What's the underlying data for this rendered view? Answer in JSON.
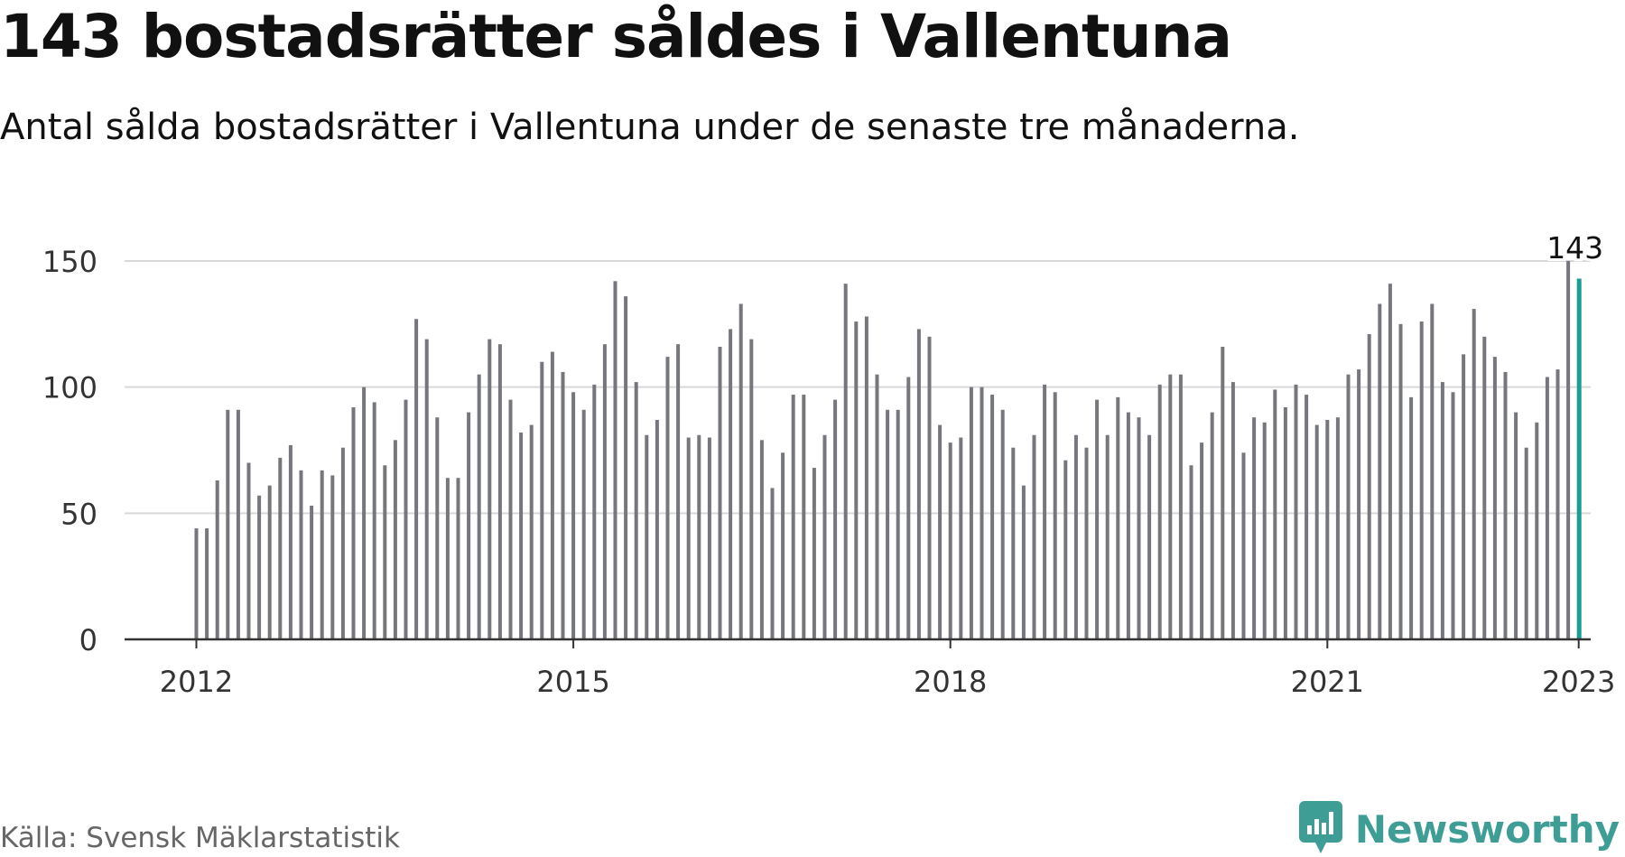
{
  "header": {
    "title": "143 bostadsrätter såldes i Vallentuna",
    "subtitle": "Antal sålda bostadsrätter i Vallentuna under de senaste tre månaderna."
  },
  "footer": {
    "source": "Källa: Svensk Mäklarstatistik",
    "brand": "Newsworthy",
    "brand_icon": "bar-chart-speech-bubble-icon"
  },
  "colors": {
    "bar": "#76767d",
    "highlight": "#1a9e92",
    "grid": "#d9d9d9",
    "axis": "#333333",
    "brand": "#3e9e95"
  },
  "chart_data": {
    "type": "bar",
    "x_start": "2012-01",
    "x": [
      "2012-01",
      "2012-02",
      "2012-03",
      "2012-04",
      "2012-05",
      "2012-06",
      "2012-07",
      "2012-08",
      "2012-09",
      "2012-10",
      "2012-11",
      "2012-12",
      "2013-01",
      "2013-02",
      "2013-03",
      "2013-04",
      "2013-05",
      "2013-06",
      "2013-07",
      "2013-08",
      "2013-09",
      "2013-10",
      "2013-11",
      "2013-12",
      "2014-01",
      "2014-02",
      "2014-03",
      "2014-04",
      "2014-05",
      "2014-06",
      "2014-07",
      "2014-08",
      "2014-09",
      "2014-10",
      "2014-11",
      "2014-12",
      "2015-01",
      "2015-02",
      "2015-03",
      "2015-04",
      "2015-05",
      "2015-06",
      "2015-07",
      "2015-08",
      "2015-09",
      "2015-10",
      "2015-11",
      "2015-12",
      "2016-01",
      "2016-02",
      "2016-03",
      "2016-04",
      "2016-05",
      "2016-06",
      "2016-07",
      "2016-08",
      "2016-09",
      "2016-10",
      "2016-11",
      "2016-12",
      "2017-01",
      "2017-02",
      "2017-03",
      "2017-04",
      "2017-05",
      "2017-06",
      "2017-07",
      "2017-08",
      "2017-09",
      "2017-10",
      "2017-11",
      "2017-12",
      "2018-01",
      "2018-02",
      "2018-03",
      "2018-04",
      "2018-05",
      "2018-06",
      "2018-07",
      "2018-08",
      "2018-09",
      "2018-10",
      "2018-11",
      "2018-12",
      "2019-01",
      "2019-02",
      "2019-03",
      "2019-04",
      "2019-05",
      "2019-06",
      "2019-07",
      "2019-08",
      "2019-09",
      "2019-10",
      "2019-11",
      "2019-12",
      "2020-01",
      "2020-02",
      "2020-03",
      "2020-04",
      "2020-05",
      "2020-06",
      "2020-07",
      "2020-08",
      "2020-09",
      "2020-10",
      "2020-11",
      "2020-12",
      "2021-01",
      "2021-02",
      "2021-03",
      "2021-04",
      "2021-05",
      "2021-06",
      "2021-07",
      "2021-08",
      "2021-09",
      "2021-10",
      "2021-11",
      "2021-12",
      "2022-01",
      "2022-02",
      "2022-03",
      "2022-04",
      "2022-05",
      "2022-06",
      "2022-07",
      "2022-08",
      "2022-09",
      "2022-10",
      "2022-11",
      "2022-12",
      "2023-01"
    ],
    "values": [
      44,
      44,
      63,
      91,
      91,
      70,
      57,
      61,
      72,
      77,
      67,
      53,
      67,
      65,
      76,
      92,
      100,
      94,
      69,
      79,
      95,
      127,
      119,
      88,
      64,
      64,
      90,
      105,
      119,
      117,
      95,
      82,
      85,
      110,
      114,
      106,
      98,
      91,
      101,
      117,
      142,
      136,
      102,
      81,
      87,
      112,
      117,
      80,
      81,
      80,
      116,
      123,
      133,
      119,
      79,
      60,
      74,
      97,
      97,
      68,
      81,
      95,
      141,
      126,
      128,
      105,
      91,
      91,
      104,
      123,
      120,
      85,
      78,
      80,
      100,
      100,
      97,
      91,
      76,
      61,
      81,
      101,
      98,
      71,
      81,
      76,
      95,
      81,
      96,
      90,
      88,
      81,
      101,
      105,
      105,
      69,
      78,
      90,
      116,
      102,
      74,
      88,
      86,
      99,
      92,
      101,
      97,
      85,
      87,
      88,
      105,
      107,
      121,
      133,
      141,
      125,
      96,
      126,
      133,
      102,
      98,
      113,
      131,
      120,
      112,
      106,
      90,
      76,
      86,
      104,
      107,
      150,
      143
    ],
    "highlight_last": true,
    "highlight_label": "143",
    "y_ticks": [
      0,
      50,
      100,
      150
    ],
    "x_tick_labels": [
      "2012",
      "2015",
      "2018",
      "2021",
      "2023"
    ],
    "ylim": [
      0,
      150
    ],
    "grid": true
  }
}
